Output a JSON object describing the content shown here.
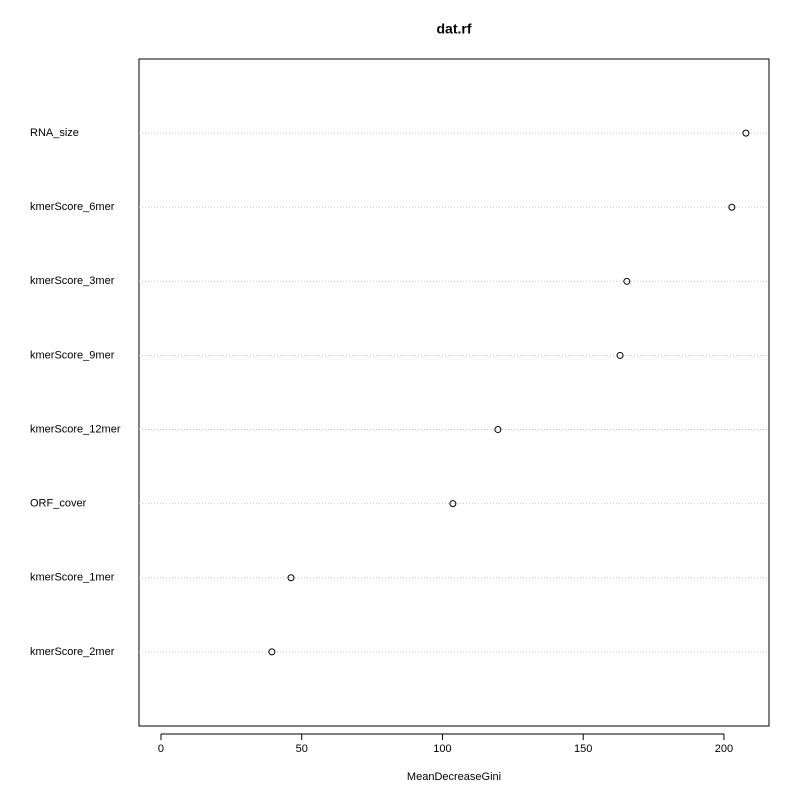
{
  "chart_data": {
    "type": "dot",
    "title": "dat.rf",
    "x_label": "MeanDecreaseGini",
    "categories": [
      "RNA_size",
      "kmerScore_6mer",
      "kmerScore_3mer",
      "kmerScore_9mer",
      "kmerScore_12mer",
      "ORF_cover",
      "kmerScore_1mer",
      "kmerScore_2mer"
    ],
    "values": [
      207.8,
      202.8,
      165.5,
      163.1,
      119.7,
      103.7,
      46.2,
      39.4
    ],
    "color": "#000000",
    "grid": true,
    "xlim": [
      -7.8,
      216
    ],
    "xticks": [
      0,
      50,
      100,
      150,
      200
    ]
  }
}
